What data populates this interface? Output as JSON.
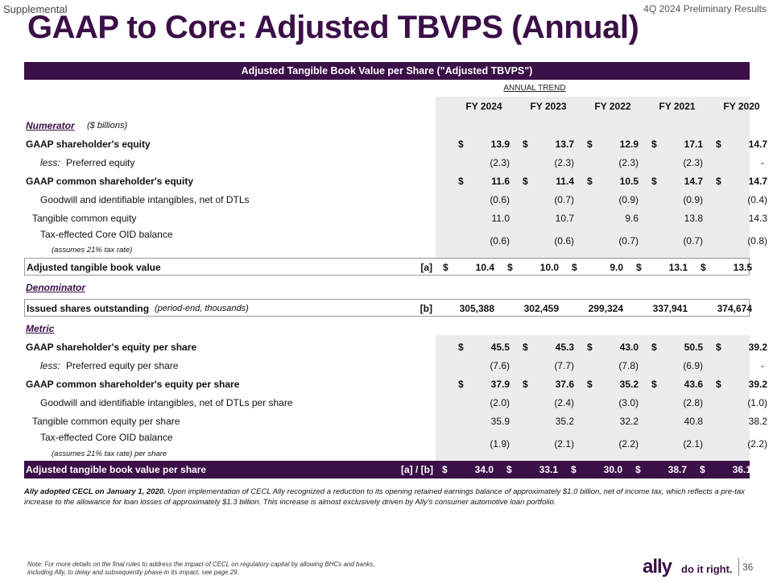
{
  "header": {
    "supplemental": "Supplemental",
    "preliminary": "4Q 2024 Preliminary Results",
    "title": "GAAP to Core: Adjusted TBVPS (Annual)"
  },
  "table": {
    "banner": "Adjusted Tangible Book Value per Share (\"Adjusted TBVPS\")",
    "trend_label": "ANNUAL TREND",
    "columns": [
      "FY 2024",
      "FY 2023",
      "FY 2022",
      "FY 2021",
      "FY 2020"
    ],
    "numerator": {
      "label": "Numerator",
      "unit": "($ billions)"
    },
    "denominator": {
      "label": "Denominator"
    },
    "metric": {
      "label": "Metric"
    },
    "tax_note_1": "(assumes 21% tax rate)",
    "tax_note_2": "(assumes 21% tax rate) per share",
    "rows": {
      "gaap_se": {
        "label": "GAAP shareholder's equity",
        "values": [
          "13.9",
          "13.7",
          "12.9",
          "17.1",
          "14.7"
        ]
      },
      "pref_eq": {
        "prefix": "less:",
        "label": "Preferred equity",
        "values": [
          "(2.3)",
          "(2.3)",
          "(2.3)",
          "(2.3)",
          "-"
        ]
      },
      "gaap_cse": {
        "label": "GAAP common shareholder's equity",
        "values": [
          "11.6",
          "11.4",
          "10.5",
          "14.7",
          "14.7"
        ]
      },
      "goodwill": {
        "label": "Goodwill and identifiable intangibles, net of DTLs",
        "values": [
          "(0.6)",
          "(0.7)",
          "(0.9)",
          "(0.9)",
          "(0.4)"
        ]
      },
      "tce": {
        "label": "Tangible common equity",
        "values": [
          "11.0",
          "10.7",
          "9.6",
          "13.8",
          "14.3"
        ]
      },
      "oid": {
        "label": "Tax-effected Core OID balance",
        "values": [
          "(0.6)",
          "(0.6)",
          "(0.7)",
          "(0.7)",
          "(0.8)"
        ]
      },
      "atbv": {
        "label": "Adjusted tangible book value",
        "ref": "[a]",
        "values": [
          "10.4",
          "10.0",
          "9.0",
          "13.1",
          "13.5"
        ]
      },
      "shares": {
        "label": "Issued shares outstanding",
        "note": "(period-end, thousands)",
        "ref": "[b]",
        "values": [
          "305,388",
          "302,459",
          "299,324",
          "337,941",
          "374,674"
        ]
      },
      "gaap_se_ps": {
        "label": "GAAP shareholder's equity per share",
        "values": [
          "45.5",
          "45.3",
          "43.0",
          "50.5",
          "39.2"
        ]
      },
      "pref_ps": {
        "prefix": "less:",
        "label": "Preferred equity per share",
        "values": [
          "(7.6)",
          "(7.7)",
          "(7.8)",
          "(6.9)",
          "-"
        ]
      },
      "gaap_cse_ps": {
        "label": "GAAP common shareholder's equity per share",
        "values": [
          "37.9",
          "37.6",
          "35.2",
          "43.6",
          "39.2"
        ]
      },
      "goodwill_ps": {
        "label": "Goodwill and identifiable intangibles, net of DTLs per share",
        "values": [
          "(2.0)",
          "(2.4)",
          "(3.0)",
          "(2.8)",
          "(1.0)"
        ]
      },
      "tce_ps": {
        "label": "Tangible common equity per share",
        "values": [
          "35.9",
          "35.2",
          "32.2",
          "40.8",
          "38.2"
        ]
      },
      "oid_ps": {
        "label": "Tax-effected Core OID balance",
        "values": [
          "(1.9)",
          "(2.1)",
          "(2.2)",
          "(2.1)",
          "(2.2)"
        ]
      },
      "atbv_ps": {
        "label": "Adjusted tangible book value per share",
        "ref": "[a] / [b]",
        "values": [
          "34.0",
          "33.1",
          "30.0",
          "38.7",
          "36.1"
        ]
      }
    }
  },
  "footnote": {
    "bold": "Ally adopted CECL on January 1, 2020.",
    "text": "Upon implementation of CECL Ally recognized a reduction to its opening retained earnings balance of approximately $1.0 billion, net of income tax, which reflects a pre-tax increase to the allowance for loan losses of approximately $1.3 billion. This increase is almost exclusively driven by Ally's consumer automotive loan portfolio."
  },
  "note": "Note: For more details on the final rules to address the impact of CECL on regulatory capital by allowing BHCs and banks, including Ally, to delay and subsequently phase-in its impact, see page 29.",
  "brand": {
    "logo": "ally",
    "tagline": "do it right."
  },
  "page_number": "36",
  "colors": {
    "brand": "#3b0f47",
    "shade": "#ececec"
  }
}
